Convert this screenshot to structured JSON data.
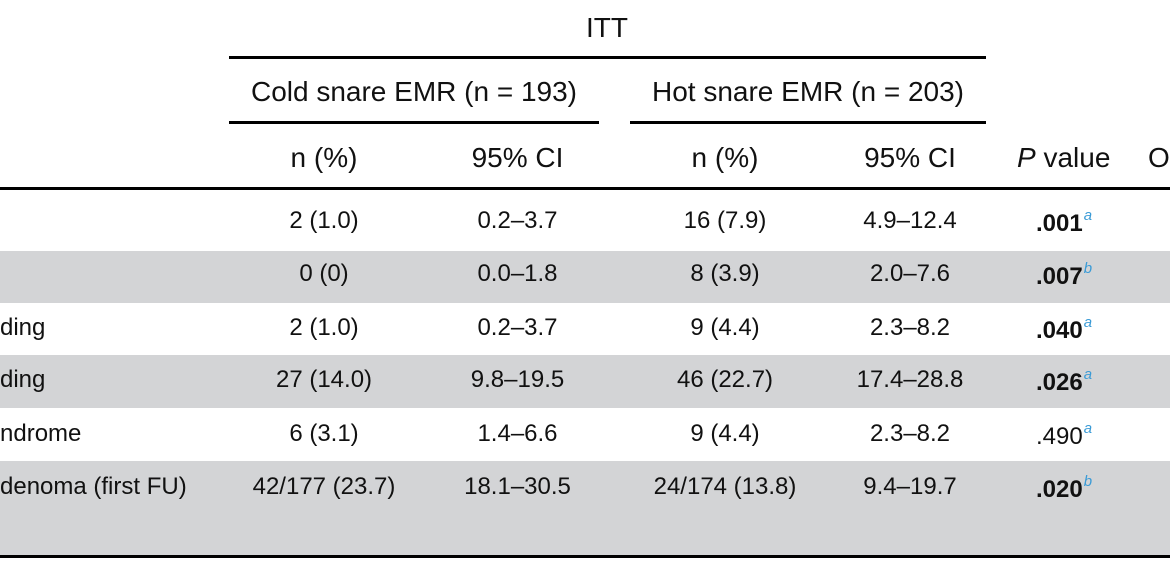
{
  "table": {
    "group_header": "ITT",
    "arms": [
      {
        "label": "Cold snare EMR (n = 193)"
      },
      {
        "label": "Hot snare EMR (n = 203)"
      }
    ],
    "subheaders": {
      "n_pct": "n (%)",
      "ci": "95% CI",
      "p_italic": "P",
      "p_rest": " value",
      "last_partial": "O"
    },
    "rows": [
      {
        "label": "",
        "cold_n": "2 (1.0)",
        "cold_ci": "0.2–3.7",
        "hot_n": "16 (7.9)",
        "hot_ci": "4.9–12.4",
        "p": ".001",
        "p_note": "a",
        "p_bold": true,
        "shaded": false
      },
      {
        "label": "",
        "cold_n": "0 (0)",
        "cold_ci": "0.0–1.8",
        "hot_n": "8 (3.9)",
        "hot_ci": "2.0–7.6",
        "p": ".007",
        "p_note": "b",
        "p_bold": true,
        "shaded": true
      },
      {
        "label": "ding",
        "cold_n": "2 (1.0)",
        "cold_ci": "0.2–3.7",
        "hot_n": "9 (4.4)",
        "hot_ci": "2.3–8.2",
        "p": ".040",
        "p_note": "a",
        "p_bold": true,
        "shaded": false
      },
      {
        "label": "ding",
        "cold_n": "27 (14.0)",
        "cold_ci": "9.8–19.5",
        "hot_n": "46 (22.7)",
        "hot_ci": "17.4–28.8",
        "p": ".026",
        "p_note": "a",
        "p_bold": true,
        "shaded": true
      },
      {
        "label": "ndrome",
        "cold_n": "6 (3.1)",
        "cold_ci": "1.4–6.6",
        "hot_n": "9 (4.4)",
        "hot_ci": "2.3–8.2",
        "p": ".490",
        "p_note": "a",
        "p_bold": false,
        "shaded": false
      },
      {
        "label": "denoma (first FU)",
        "cold_n": "42/177 (23.7)",
        "cold_ci": "18.1–30.5",
        "hot_n": "24/174 (13.8)",
        "hot_ci": "9.4–19.7",
        "p": ".020",
        "p_note": "b",
        "p_bold": true,
        "shaded": true
      }
    ]
  },
  "colors": {
    "band": "#d3d4d6",
    "footnote": "#3b9bd6",
    "rule": "#000000"
  }
}
